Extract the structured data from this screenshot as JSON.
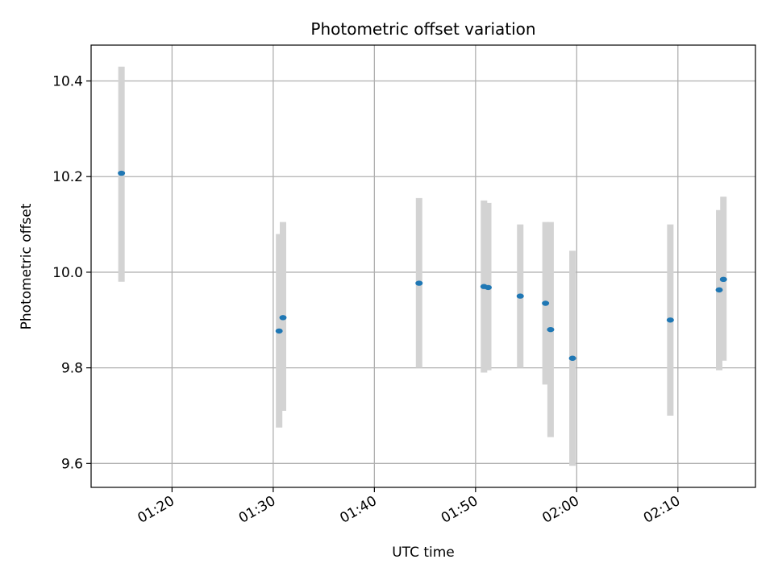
{
  "chart_data": {
    "type": "scatter",
    "title": "Photometric offset variation",
    "xlabel": "UTC time",
    "ylabel": "Photometric offset",
    "x_axis_type": "time",
    "xlim": [
      "01:12:00",
      "02:17:40"
    ],
    "ylim": [
      9.55,
      10.475
    ],
    "x_ticks": [
      "01:20",
      "01:30",
      "01:40",
      "01:50",
      "02:00",
      "02:10"
    ],
    "y_ticks": [
      9.6,
      9.8,
      10.0,
      10.2,
      10.4
    ],
    "grid": true,
    "colors": {
      "marker": "#1f77b4",
      "errorbar": "#d3d3d3",
      "grid": "#b0b0b0"
    },
    "series": [
      {
        "points": [
          {
            "x": "01:15:00",
            "y": 10.207,
            "yerr_low": 9.98,
            "yerr_high": 10.43
          },
          {
            "x": "01:30:35",
            "y": 9.877,
            "yerr_low": 9.675,
            "yerr_high": 10.08
          },
          {
            "x": "01:30:58",
            "y": 9.905,
            "yerr_low": 9.71,
            "yerr_high": 10.105
          },
          {
            "x": "01:44:25",
            "y": 9.977,
            "yerr_low": 9.8,
            "yerr_high": 10.155
          },
          {
            "x": "01:50:50",
            "y": 9.97,
            "yerr_low": 9.79,
            "yerr_high": 10.15
          },
          {
            "x": "01:51:15",
            "y": 9.968,
            "yerr_low": 9.795,
            "yerr_high": 10.145
          },
          {
            "x": "01:54:25",
            "y": 9.95,
            "yerr_low": 9.8,
            "yerr_high": 10.1
          },
          {
            "x": "01:56:55",
            "y": 9.935,
            "yerr_low": 9.765,
            "yerr_high": 10.105
          },
          {
            "x": "01:57:25",
            "y": 9.88,
            "yerr_low": 9.655,
            "yerr_high": 10.105
          },
          {
            "x": "01:59:35",
            "y": 9.82,
            "yerr_low": 9.595,
            "yerr_high": 10.045
          },
          {
            "x": "02:09:15",
            "y": 9.9,
            "yerr_low": 9.7,
            "yerr_high": 10.1
          },
          {
            "x": "02:14:05",
            "y": 9.963,
            "yerr_low": 9.795,
            "yerr_high": 10.13
          },
          {
            "x": "02:14:30",
            "y": 9.985,
            "yerr_low": 9.815,
            "yerr_high": 10.158
          }
        ]
      }
    ]
  }
}
